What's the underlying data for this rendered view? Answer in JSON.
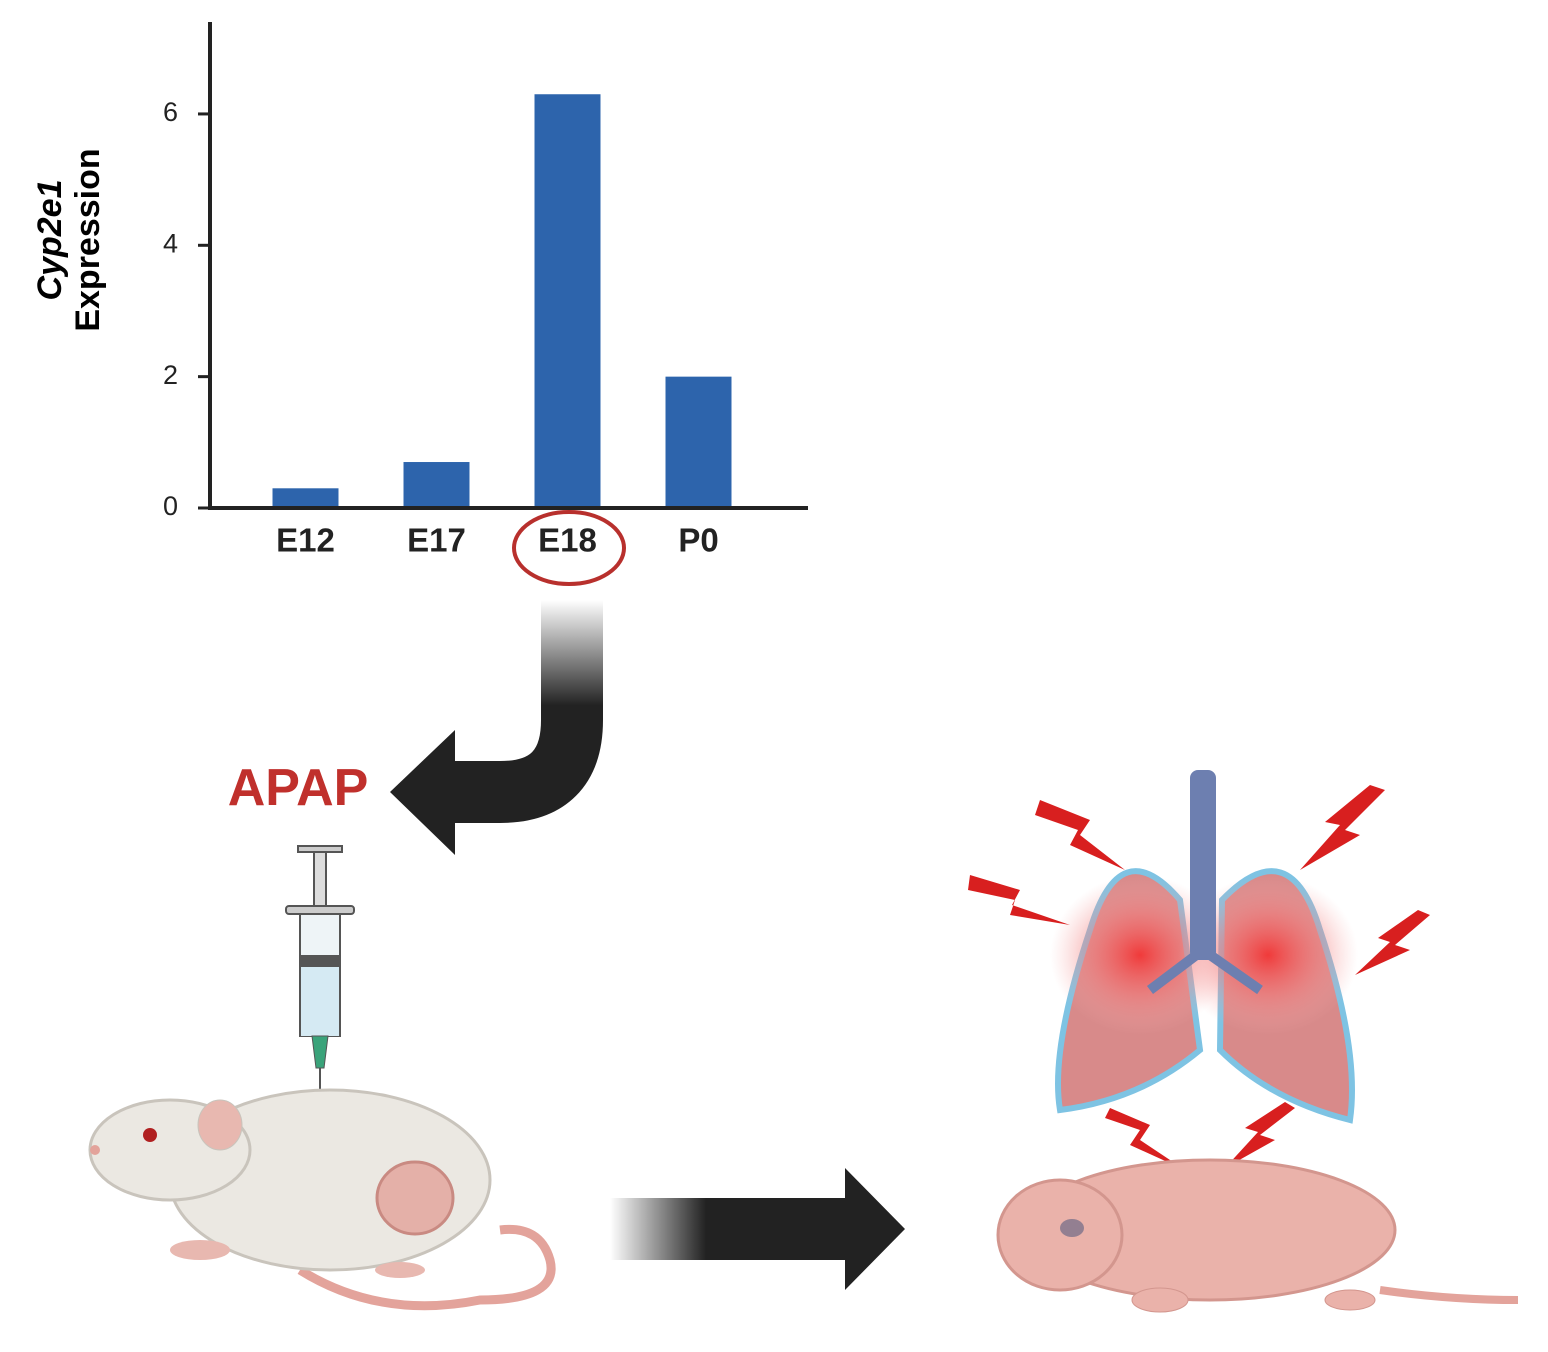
{
  "chart_data": {
    "type": "bar",
    "ylabel_lines": [
      "Cyp2e1",
      "Expression"
    ],
    "categories": [
      "E12",
      "E17",
      "E18",
      "P0"
    ],
    "values": [
      0.3,
      0.7,
      6.3,
      2.0
    ],
    "color": "#2d64ac",
    "ylim": [
      0,
      7.4
    ],
    "yticks": [
      0,
      2,
      4,
      6
    ],
    "grid": false,
    "annotations": [
      "APAP"
    ]
  }
}
